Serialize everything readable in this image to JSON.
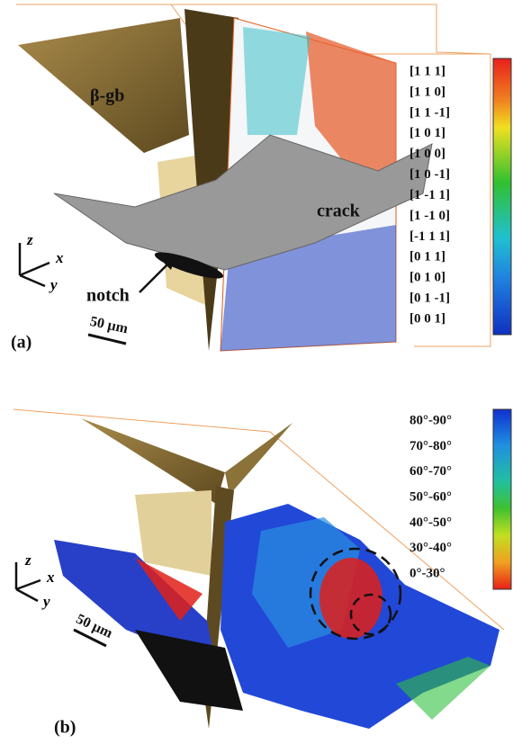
{
  "panel_a": {
    "label": "(a)",
    "beta_gb": "β-gb",
    "crack": "crack",
    "notch": "notch",
    "axes": {
      "z": "z",
      "x": "x",
      "y": "y"
    },
    "scale_bar": "50 µm",
    "legend": [
      "[1 1 1]",
      "[1 1 0]",
      "[1 1 -1]",
      "[1 0 1]",
      "[1 0 0]",
      "[1 0 -1]",
      "[1 -1 1]",
      "[1 -1 0]",
      "[-1 1 1]",
      "[0 1 1]",
      "[0 1 0]",
      "[0 1 -1]",
      "[0 0 1]"
    ]
  },
  "panel_b": {
    "label": "(b)",
    "axes": {
      "z": "z",
      "x": "x",
      "y": "y"
    },
    "scale_bar": "50 µm",
    "legend": [
      "80°-90°",
      "70°-80°",
      "60°-70°",
      "50°-60°",
      "40°-50°",
      "30°-40°",
      "0°-30°"
    ]
  }
}
